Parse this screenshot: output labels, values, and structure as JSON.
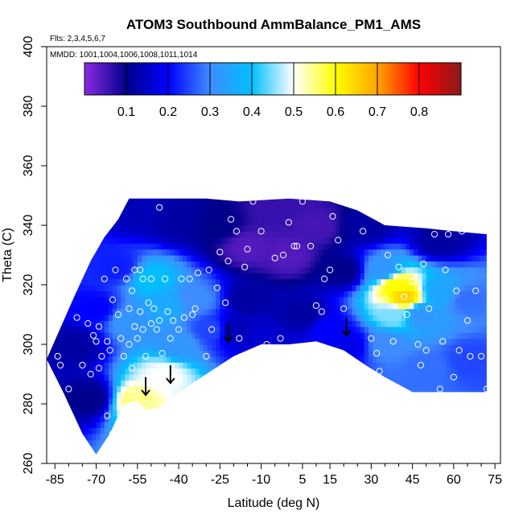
{
  "chart_data": {
    "type": "heatmap",
    "title": "ATOM3 Southbound AmmBalance_PM1_AMS",
    "flights_label": "Flts: 2,3,4,5,6,7",
    "dates_label": "MMDD: 1001,1004,1006,1008,1011,1014",
    "xlabel": "Latitude (deg N)",
    "ylabel": "Theta (C)",
    "xlim": [
      -88,
      77
    ],
    "ylim": [
      260,
      400
    ],
    "x_ticks": [
      -85,
      -70,
      -55,
      -40,
      -25,
      -10,
      5,
      15,
      30,
      45,
      60,
      75
    ],
    "x_tick_labels": [
      "-85",
      "-70",
      "-55",
      "-40",
      "-25",
      "-10",
      "5",
      "15",
      "30",
      "45",
      "60",
      "75"
    ],
    "x_minor_ticks": [
      -80,
      -75,
      -65,
      -60,
      -50,
      -45,
      -35,
      -30,
      -20,
      -15,
      -5,
      0,
      10,
      20,
      25,
      35,
      40,
      50,
      55,
      65,
      70
    ],
    "y_ticks": [
      260,
      280,
      300,
      320,
      340,
      360,
      380,
      400
    ],
    "y_tick_labels": [
      "260",
      "280",
      "300",
      "320",
      "340",
      "360",
      "380",
      "400"
    ],
    "colorbar": {
      "range": [
        0,
        0.9
      ],
      "ticks": [
        0.1,
        0.2,
        0.3,
        0.4,
        0.5,
        0.6,
        0.7,
        0.8
      ],
      "tick_labels": [
        "0.1",
        "0.2",
        "0.3",
        "0.4",
        "0.5",
        "0.6",
        "0.7",
        "0.8"
      ],
      "colors": [
        "#8a2be2",
        "#00008b",
        "#0000ff",
        "#3f8cff",
        "#00bfff",
        "#ffffff",
        "#ffff00",
        "#ffa500",
        "#ff0000",
        "#8b1a1a"
      ]
    },
    "domain_top": [
      [
        -78,
        316
      ],
      [
        -72,
        328
      ],
      [
        -67,
        336
      ],
      [
        -62,
        342
      ],
      [
        -58,
        349
      ],
      [
        -30,
        349
      ],
      [
        -18,
        348
      ],
      [
        0,
        349
      ],
      [
        15,
        348
      ],
      [
        25,
        345
      ],
      [
        35,
        340
      ],
      [
        50,
        339
      ],
      [
        60,
        338
      ],
      [
        72,
        337
      ]
    ],
    "domain_bottom": [
      [
        -88,
        295
      ],
      [
        -82,
        284
      ],
      [
        -75,
        270
      ],
      [
        -70,
        263
      ],
      [
        -65,
        270
      ],
      [
        -60,
        280
      ],
      [
        -55,
        281
      ],
      [
        -52,
        278
      ],
      [
        -47,
        279
      ],
      [
        -40,
        284
      ],
      [
        -30,
        290
      ],
      [
        -20,
        296
      ],
      [
        -10,
        300
      ],
      [
        0,
        300
      ],
      [
        10,
        301
      ],
      [
        20,
        298
      ],
      [
        28,
        293
      ],
      [
        35,
        289
      ],
      [
        45,
        284
      ],
      [
        55,
        284
      ],
      [
        65,
        284
      ],
      [
        72,
        284
      ]
    ],
    "field_anchors": [
      {
        "lat": 42,
        "theta": 316,
        "value": 0.65
      },
      {
        "lat": 39,
        "theta": 320,
        "value": 0.6
      },
      {
        "lat": 38,
        "theta": 310,
        "value": 0.45
      },
      {
        "lat": 34,
        "theta": 325,
        "value": 0.32
      },
      {
        "lat": 48,
        "theta": 310,
        "value": 0.32
      },
      {
        "lat": 55,
        "theta": 318,
        "value": 0.35
      },
      {
        "lat": 65,
        "theta": 315,
        "value": 0.28
      },
      {
        "lat": 66,
        "theta": 295,
        "value": 0.25
      },
      {
        "lat": 50,
        "theta": 292,
        "value": 0.28
      },
      {
        "lat": 35,
        "theta": 300,
        "value": 0.3
      },
      {
        "lat": 55,
        "theta": 335,
        "value": 0.12
      },
      {
        "lat": -50,
        "theta": 322,
        "value": 0.4
      },
      {
        "lat": -45,
        "theta": 313,
        "value": 0.36
      },
      {
        "lat": -58,
        "theta": 308,
        "value": 0.32
      },
      {
        "lat": -40,
        "theta": 300,
        "value": 0.32
      },
      {
        "lat": -33,
        "theta": 315,
        "value": 0.3
      },
      {
        "lat": -28,
        "theta": 305,
        "value": 0.25
      },
      {
        "lat": -62,
        "theta": 326,
        "value": 0.22
      },
      {
        "lat": -70,
        "theta": 312,
        "value": 0.2
      },
      {
        "lat": -78,
        "theta": 300,
        "value": 0.12
      },
      {
        "lat": -72,
        "theta": 282,
        "value": 0.1
      },
      {
        "lat": -56,
        "theta": 281,
        "value": 0.55
      },
      {
        "lat": -45,
        "theta": 290,
        "value": 0.5
      },
      {
        "lat": -15,
        "theta": 333,
        "value": 0.04
      },
      {
        "lat": 0,
        "theta": 330,
        "value": 0.04
      },
      {
        "lat": 10,
        "theta": 340,
        "value": 0.05
      },
      {
        "lat": -5,
        "theta": 345,
        "value": 0.06
      },
      {
        "lat": 20,
        "theta": 325,
        "value": 0.1
      },
      {
        "lat": -15,
        "theta": 315,
        "value": 0.12
      },
      {
        "lat": 5,
        "theta": 310,
        "value": 0.12
      },
      {
        "lat": 15,
        "theta": 305,
        "value": 0.2
      },
      {
        "lat": 22,
        "theta": 300,
        "value": 0.18
      },
      {
        "lat": -20,
        "theta": 305,
        "value": 0.14
      },
      {
        "lat": -25,
        "theta": 340,
        "value": 0.1
      },
      {
        "lat": -40,
        "theta": 342,
        "value": 0.12
      },
      {
        "lat": -55,
        "theta": 345,
        "value": 0.14
      },
      {
        "lat": 28,
        "theta": 340,
        "value": 0.12
      },
      {
        "lat": -8,
        "theta": 302,
        "value": 0.16
      }
    ],
    "observations": [
      [
        -86,
        308
      ],
      [
        -84,
        296
      ],
      [
        -83,
        293
      ],
      [
        -80,
        285
      ],
      [
        -77,
        309
      ],
      [
        -75,
        293
      ],
      [
        -73,
        307
      ],
      [
        -72,
        290
      ],
      [
        -71,
        303
      ],
      [
        -70,
        301
      ],
      [
        -69,
        306
      ],
      [
        -69,
        292
      ],
      [
        -68,
        296
      ],
      [
        -67,
        322
      ],
      [
        -66,
        301
      ],
      [
        -66,
        276
      ],
      [
        -65,
        298
      ],
      [
        -64,
        315
      ],
      [
        -64,
        270
      ],
      [
        -63,
        325
      ],
      [
        -62,
        310
      ],
      [
        -61,
        302
      ],
      [
        -60,
        296
      ],
      [
        -60,
        274
      ],
      [
        -59,
        322
      ],
      [
        -58,
        312
      ],
      [
        -58,
        300
      ],
      [
        -57,
        318
      ],
      [
        -57,
        292
      ],
      [
        -56,
        325
      ],
      [
        -56,
        306
      ],
      [
        -56,
        283
      ],
      [
        -55,
        302
      ],
      [
        -54,
        311
      ],
      [
        -54,
        325
      ],
      [
        -53,
        322
      ],
      [
        -53,
        305
      ],
      [
        -52,
        296
      ],
      [
        -52,
        280
      ],
      [
        -51,
        314
      ],
      [
        -50,
        307
      ],
      [
        -50,
        322
      ],
      [
        -49,
        312
      ],
      [
        -48,
        305
      ],
      [
        -47,
        308
      ],
      [
        -47,
        346
      ],
      [
        -46,
        297
      ],
      [
        -45,
        322
      ],
      [
        -44,
        311
      ],
      [
        -43,
        302
      ],
      [
        -42,
        308
      ],
      [
        -40,
        288
      ],
      [
        -40,
        305
      ],
      [
        -39,
        322
      ],
      [
        -38,
        309
      ],
      [
        -36,
        322
      ],
      [
        -35,
        310
      ],
      [
        -34,
        312
      ],
      [
        -33,
        324
      ],
      [
        -30,
        296
      ],
      [
        -29,
        325
      ],
      [
        -28,
        305
      ],
      [
        -26,
        319
      ],
      [
        -25,
        331
      ],
      [
        -23,
        314
      ],
      [
        -22,
        328
      ],
      [
        -21,
        342
      ],
      [
        -19,
        338
      ],
      [
        -18,
        302
      ],
      [
        -16,
        326
      ],
      [
        -15,
        332
      ],
      [
        -13,
        348
      ],
      [
        -10,
        338
      ],
      [
        -8,
        300
      ],
      [
        -5,
        329
      ],
      [
        -3,
        302
      ],
      [
        -2,
        330
      ],
      [
        0,
        341
      ],
      [
        2,
        333
      ],
      [
        3,
        333
      ],
      [
        5,
        348
      ],
      [
        8,
        333
      ],
      [
        10,
        313
      ],
      [
        12,
        311
      ],
      [
        13,
        322
      ],
      [
        15,
        325
      ],
      [
        16,
        343
      ],
      [
        18,
        335
      ],
      [
        20,
        312
      ],
      [
        25,
        293
      ],
      [
        27,
        338
      ],
      [
        30,
        302
      ],
      [
        32,
        297
      ],
      [
        33,
        291
      ],
      [
        35,
        315
      ],
      [
        36,
        330
      ],
      [
        38,
        301
      ],
      [
        40,
        326
      ],
      [
        42,
        316
      ],
      [
        43,
        310
      ],
      [
        45,
        321
      ],
      [
        47,
        300
      ],
      [
        48,
        293
      ],
      [
        49,
        327
      ],
      [
        50,
        298
      ],
      [
        51,
        312
      ],
      [
        53,
        337
      ],
      [
        55,
        285
      ],
      [
        56,
        301
      ],
      [
        57,
        325
      ],
      [
        58,
        337
      ],
      [
        60,
        289
      ],
      [
        61,
        318
      ],
      [
        62,
        298
      ],
      [
        63,
        338
      ],
      [
        65,
        308
      ],
      [
        66,
        296
      ],
      [
        68,
        318
      ],
      [
        70,
        296
      ],
      [
        72,
        285
      ]
    ],
    "arrows": [
      {
        "lat": -22,
        "theta": 302,
        "label": "down"
      },
      {
        "lat": -52,
        "theta": 284,
        "label": "down"
      },
      {
        "lat": -43,
        "theta": 288,
        "label": "down"
      },
      {
        "lat": 21,
        "theta": 304,
        "label": "down"
      }
    ]
  }
}
